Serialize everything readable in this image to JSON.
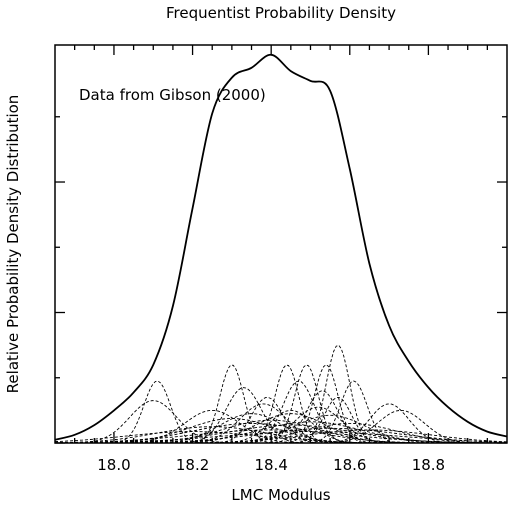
{
  "chart_data": {
    "type": "line",
    "title": "Frequentist Probability Density",
    "xlabel": "LMC Modulus",
    "ylabel": "Relative Probability Density Distribution",
    "annotation": "Data from Gibson (2000)",
    "xlim": [
      17.85,
      19.0
    ],
    "ylim": [
      0,
      1.22
    ],
    "xticks": [
      18.0,
      18.2,
      18.4,
      18.6,
      18.8
    ],
    "xtick_labels": [
      "18.0",
      "18.2",
      "18.4",
      "18.6",
      "18.8"
    ],
    "yticks_major": [
      0,
      0.4,
      0.8
    ],
    "yticks_minor": [
      0.2,
      0.6,
      1.0
    ],
    "grid": false,
    "series": [
      {
        "style": "solid",
        "x": [
          17.85,
          17.9,
          17.95,
          18.0,
          18.05,
          18.1,
          18.15,
          18.2,
          18.25,
          18.3,
          18.35,
          18.4,
          18.45,
          18.5,
          18.55,
          18.6,
          18.65,
          18.7,
          18.75,
          18.8,
          18.85,
          18.9,
          18.95,
          19.0
        ],
        "y": [
          0.01,
          0.025,
          0.055,
          0.1,
          0.155,
          0.24,
          0.42,
          0.72,
          1.01,
          1.12,
          1.15,
          1.19,
          1.14,
          1.11,
          1.08,
          0.84,
          0.55,
          0.36,
          0.25,
          0.17,
          0.11,
          0.065,
          0.035,
          0.02
        ]
      }
    ],
    "components": [
      {
        "center": 18.11,
        "sigma": 0.034,
        "peak": 0.19
      },
      {
        "center": 18.3,
        "sigma": 0.03,
        "peak": 0.24
      },
      {
        "center": 18.44,
        "sigma": 0.03,
        "peak": 0.24
      },
      {
        "center": 18.49,
        "sigma": 0.03,
        "peak": 0.24
      },
      {
        "center": 18.54,
        "sigma": 0.03,
        "peak": 0.24
      },
      {
        "center": 18.57,
        "sigma": 0.03,
        "peak": 0.3
      },
      {
        "center": 18.61,
        "sigma": 0.034,
        "peak": 0.19
      },
      {
        "center": 18.33,
        "sigma": 0.045,
        "peak": 0.17
      },
      {
        "center": 18.39,
        "sigma": 0.04,
        "peak": 0.14
      },
      {
        "center": 18.47,
        "sigma": 0.04,
        "peak": 0.19
      },
      {
        "center": 18.53,
        "sigma": 0.04,
        "peak": 0.16
      },
      {
        "center": 18.57,
        "sigma": 0.035,
        "peak": 0.14
      },
      {
        "center": 18.7,
        "sigma": 0.05,
        "peak": 0.12
      },
      {
        "center": 18.1,
        "sigma": 0.06,
        "peak": 0.13
      },
      {
        "center": 18.73,
        "sigma": 0.06,
        "peak": 0.1
      },
      {
        "center": 18.25,
        "sigma": 0.07,
        "peak": 0.1
      },
      {
        "center": 18.35,
        "sigma": 0.08,
        "peak": 0.09
      },
      {
        "center": 18.45,
        "sigma": 0.09,
        "peak": 0.09
      },
      {
        "center": 18.55,
        "sigma": 0.09,
        "peak": 0.085
      },
      {
        "center": 18.3,
        "sigma": 0.11,
        "peak": 0.075
      },
      {
        "center": 18.4,
        "sigma": 0.12,
        "peak": 0.07
      },
      {
        "center": 18.5,
        "sigma": 0.13,
        "peak": 0.065
      },
      {
        "center": 18.35,
        "sigma": 0.15,
        "peak": 0.06
      },
      {
        "center": 18.45,
        "sigma": 0.16,
        "peak": 0.055
      },
      {
        "center": 18.6,
        "sigma": 0.12,
        "peak": 0.06
      },
      {
        "center": 18.25,
        "sigma": 0.14,
        "peak": 0.05
      },
      {
        "center": 18.55,
        "sigma": 0.18,
        "peak": 0.045
      },
      {
        "center": 18.4,
        "sigma": 0.2,
        "peak": 0.04
      },
      {
        "center": 18.65,
        "sigma": 0.16,
        "peak": 0.04
      },
      {
        "center": 18.2,
        "sigma": 0.17,
        "peak": 0.035
      },
      {
        "center": 18.5,
        "sigma": 0.22,
        "peak": 0.035
      },
      {
        "center": 18.38,
        "sigma": 0.06,
        "peak": 0.12
      },
      {
        "center": 18.52,
        "sigma": 0.06,
        "peak": 0.11
      },
      {
        "center": 18.45,
        "sigma": 0.055,
        "peak": 0.1
      }
    ]
  }
}
